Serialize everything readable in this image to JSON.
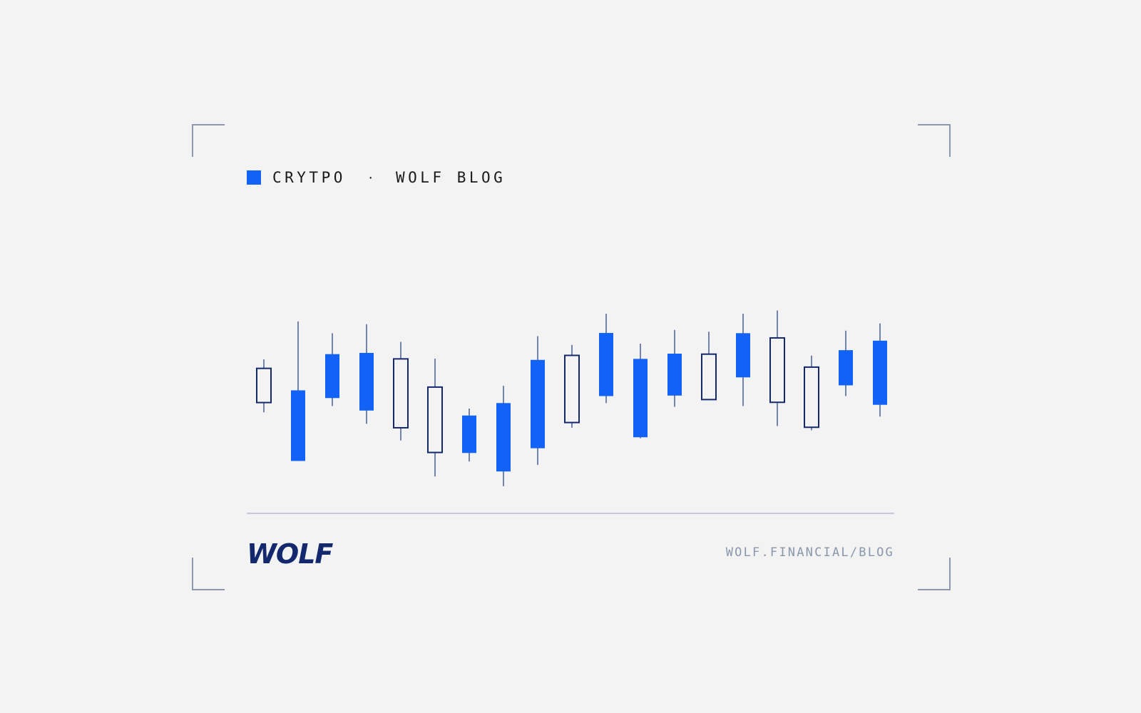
{
  "header": {
    "category": "CRYTPO",
    "separator": "·",
    "blog": "WOLF BLOG"
  },
  "footer": {
    "logo_text": "WOLF",
    "url": "WOLF.FINANCIAL/BLOG"
  },
  "colors": {
    "accent": "#1262f5",
    "navy": "#14286e",
    "wick": "#3d5291",
    "baseline": "#b8bdd4",
    "corner": "#8e9aab",
    "url": "#8a97ab",
    "background": "#f3f3f3"
  },
  "chart_data": {
    "type": "candlestick",
    "grid": false,
    "legend": "none",
    "ylim": [
      0,
      100
    ],
    "candles": [
      {
        "style": "hollow",
        "high": 61.7,
        "low": 40.5,
        "body_top": 58.1,
        "body_bottom": 44.4
      },
      {
        "style": "filled",
        "high": 76.9,
        "low": 27.8,
        "body_top": 49.3,
        "body_bottom": 21.0
      },
      {
        "style": "filled",
        "high": 72.2,
        "low": 43.0,
        "body_top": 63.8,
        "body_bottom": 46.2
      },
      {
        "style": "filled",
        "high": 75.8,
        "low": 35.9,
        "body_top": 64.3,
        "body_bottom": 41.2
      },
      {
        "style": "hollow",
        "high": 68.7,
        "low": 29.2,
        "body_top": 61.9,
        "body_bottom": 34.3
      },
      {
        "style": "hollow",
        "high": 62.0,
        "low": 14.8,
        "body_top": 50.6,
        "body_bottom": 24.4
      },
      {
        "style": "filled",
        "high": 42.0,
        "low": 20.8,
        "body_top": 39.2,
        "body_bottom": 24.2
      },
      {
        "style": "filled",
        "high": 51.1,
        "low": 10.9,
        "body_top": 44.2,
        "body_bottom": 16.8
      },
      {
        "style": "filled",
        "high": 71.0,
        "low": 19.4,
        "body_top": 61.5,
        "body_bottom": 26.1
      },
      {
        "style": "hollow",
        "high": 67.5,
        "low": 34.3,
        "body_top": 63.3,
        "body_bottom": 36.4
      },
      {
        "style": "filled",
        "high": 80.0,
        "low": 44.2,
        "body_top": 72.3,
        "body_bottom": 47.0
      },
      {
        "style": "filled",
        "high": 68.0,
        "low": 30.1,
        "body_top": 61.9,
        "body_bottom": 30.5
      },
      {
        "style": "filled",
        "high": 73.5,
        "low": 42.7,
        "body_top": 64.0,
        "body_bottom": 47.2
      },
      {
        "style": "hollow",
        "high": 72.8,
        "low": 48.3,
        "body_top": 63.8,
        "body_bottom": 45.6
      },
      {
        "style": "filled",
        "high": 80.0,
        "low": 43.0,
        "body_top": 72.2,
        "body_bottom": 54.5
      },
      {
        "style": "hollow",
        "high": 81.3,
        "low": 35.0,
        "body_top": 70.3,
        "body_bottom": 44.5
      },
      {
        "style": "hollow",
        "high": 63.2,
        "low": 33.3,
        "body_top": 58.6,
        "body_bottom": 34.5
      },
      {
        "style": "filled",
        "high": 73.2,
        "low": 47.0,
        "body_top": 65.4,
        "body_bottom": 51.3
      },
      {
        "style": "filled",
        "high": 76.1,
        "low": 38.8,
        "body_top": 69.2,
        "body_bottom": 43.5
      }
    ]
  }
}
